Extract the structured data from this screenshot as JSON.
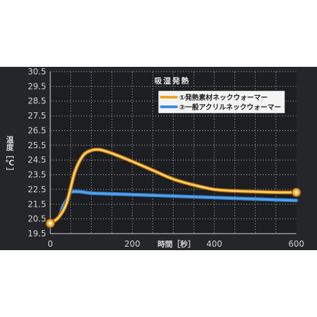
{
  "chart_data": {
    "type": "line",
    "title": "吸湿発熱",
    "xlabel": "時間［秒］",
    "ylabel": "温度［℃］",
    "xlim": [
      0,
      600
    ],
    "ylim": [
      19.5,
      30.5
    ],
    "x_ticks": [
      0,
      200,
      400,
      600
    ],
    "x_tick_labels": [
      "0",
      "200",
      "400",
      "600"
    ],
    "y_ticks": [
      19.5,
      20.5,
      21.5,
      22.5,
      23.5,
      24.5,
      25.5,
      26.5,
      27.5,
      28.5,
      29.5,
      30.5
    ],
    "y_tick_labels": [
      "19.5",
      "20.5",
      "21.5",
      "22.5",
      "23.5",
      "24.5",
      "25.5",
      "26.5",
      "27.5",
      "28.5",
      "29.5",
      "30.5"
    ],
    "grid": true,
    "legend_position": "top-right",
    "series": [
      {
        "name": "①発熱素材ネックウォーマー",
        "color": "#f2a623",
        "x": [
          0,
          20,
          40,
          60,
          80,
          100,
          120,
          140,
          160,
          200,
          250,
          300,
          350,
          400,
          450,
          500,
          550,
          600
        ],
        "y": [
          20.2,
          20.6,
          21.6,
          23.7,
          24.8,
          25.15,
          25.2,
          25.05,
          24.85,
          24.4,
          23.8,
          23.2,
          22.8,
          22.5,
          22.4,
          22.35,
          22.3,
          22.3
        ]
      },
      {
        "name": "②一般アクリルネックウォーマー",
        "color": "#3a8ee0",
        "x": [
          0,
          20,
          30,
          40,
          50,
          70,
          100,
          150,
          200,
          300,
          400,
          500,
          600
        ],
        "y": [
          20.2,
          20.6,
          21.3,
          21.8,
          22.3,
          22.35,
          22.25,
          22.2,
          22.15,
          22.05,
          21.95,
          21.85,
          21.75
        ]
      }
    ]
  }
}
